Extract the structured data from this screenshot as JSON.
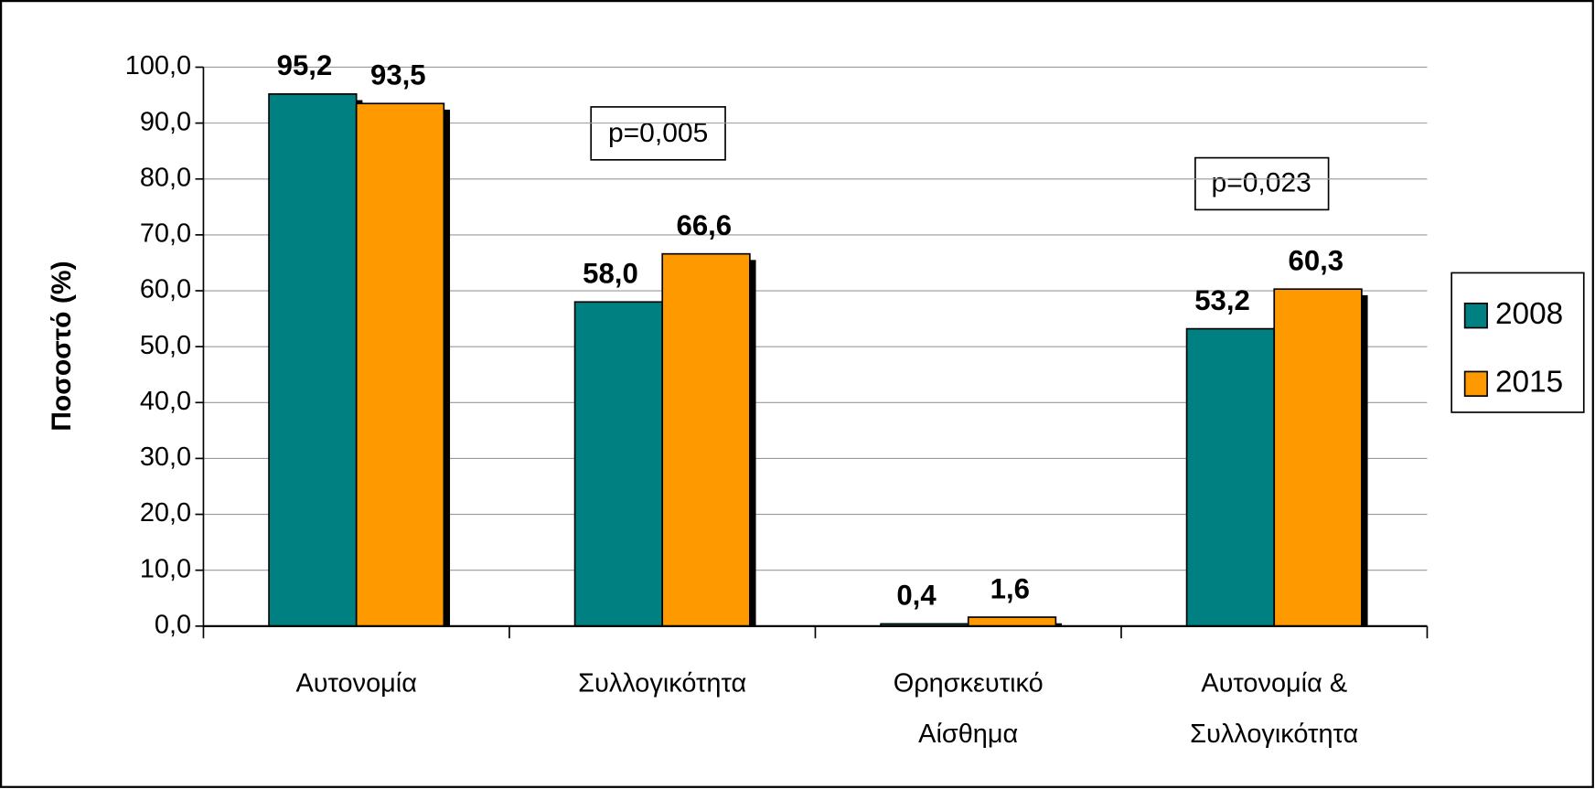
{
  "chart_data": {
    "type": "bar",
    "y_label": "Ποσοστό (%)",
    "categories": [
      "Αυτονομία",
      "Συλλογικότητα",
      "Θρησκευτικό\nΑίσθημα",
      "Αυτονομία &\nΣυλλογικότητα"
    ],
    "series": [
      {
        "name": "2008",
        "color": "#008080",
        "values": [
          95.2,
          58.0,
          0.4,
          53.2
        ],
        "value_labels": [
          "95,2",
          "58,0",
          "0,4",
          "53,2"
        ]
      },
      {
        "name": "2015",
        "color": "#ff9900",
        "values": [
          93.5,
          66.6,
          1.6,
          60.3
        ],
        "value_labels": [
          "93,5",
          "66,6",
          "1,6",
          "60,3"
        ]
      }
    ],
    "ylim": [
      0,
      100
    ],
    "yticks": [
      {
        "value": 0,
        "label": "0,0"
      },
      {
        "value": 10,
        "label": "10,0"
      },
      {
        "value": 20,
        "label": "20,0"
      },
      {
        "value": 30,
        "label": "30,0"
      },
      {
        "value": 40,
        "label": "40,0"
      },
      {
        "value": 50,
        "label": "50,0"
      },
      {
        "value": 60,
        "label": "60,0"
      },
      {
        "value": 70,
        "label": "70,0"
      },
      {
        "value": 80,
        "label": "80,0"
      },
      {
        "value": 90,
        "label": "90,0"
      },
      {
        "value": 100,
        "label": "100,0"
      }
    ],
    "grid": true,
    "legend": "right",
    "annotations": [
      "p=0,005",
      "p=0,023"
    ]
  }
}
